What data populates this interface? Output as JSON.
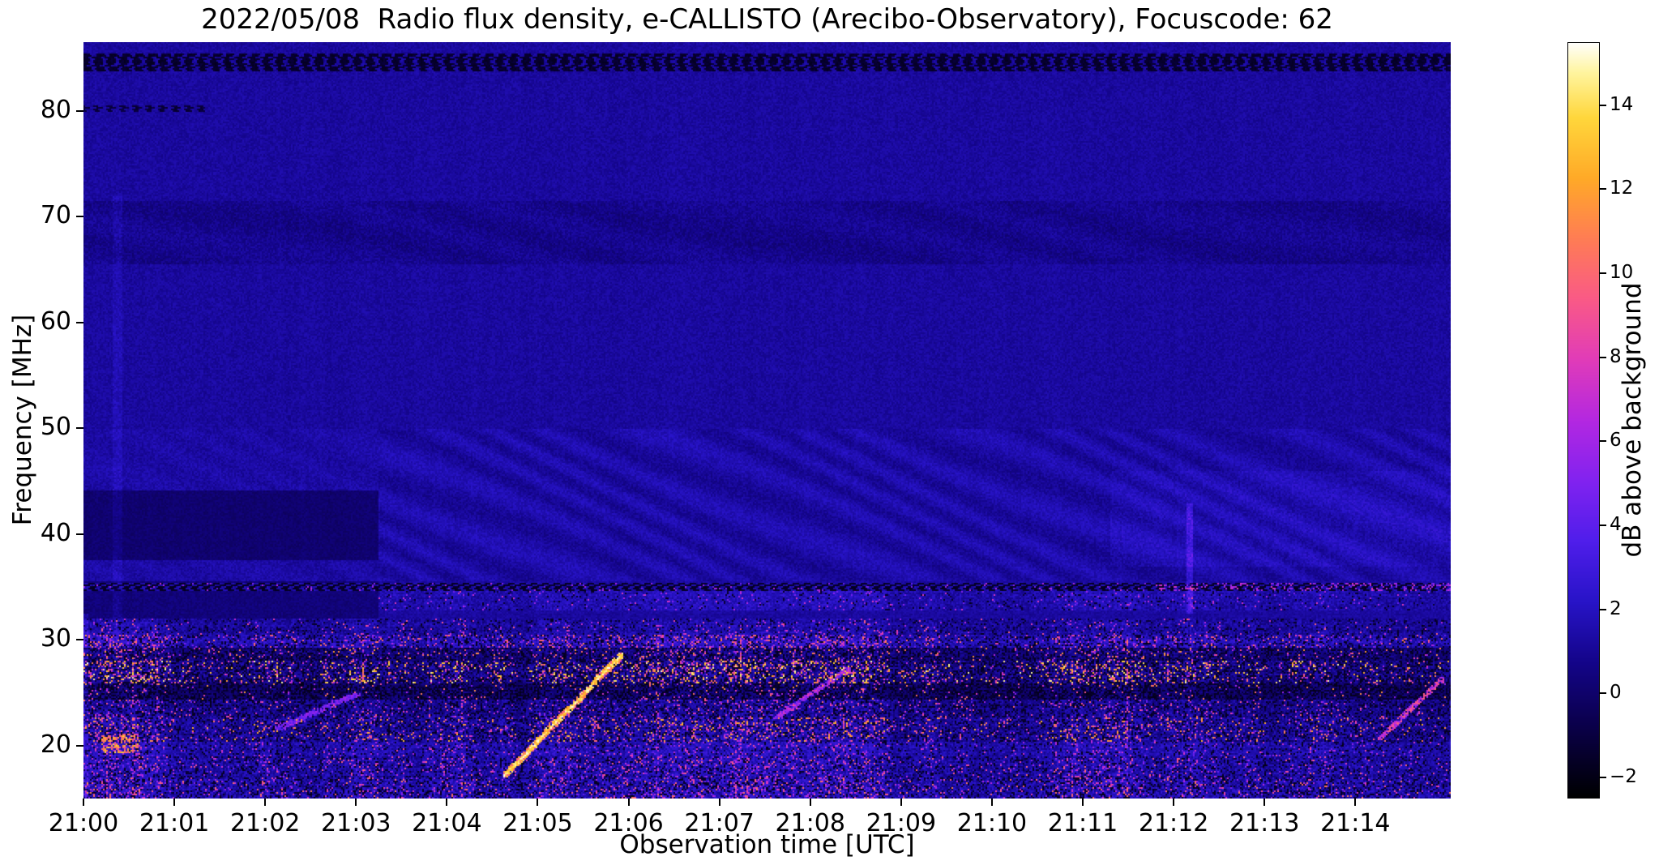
{
  "figure": {
    "background": "#ffffff"
  },
  "chart_data": {
    "type": "heatmap",
    "title": "2022/05/08  Radio flux density, e-CALLISTO (Arecibo-Observatory), Focuscode: 62",
    "xlabel": "Observation time [UTC]",
    "ylabel": "Frequency [MHz]",
    "colorbar_label": "dB above background",
    "x_tick_labels": [
      "21:00",
      "21:01",
      "21:02",
      "21:03",
      "21:04",
      "21:05",
      "21:06",
      "21:07",
      "21:08",
      "21:09",
      "21:10",
      "21:11",
      "21:12",
      "21:13",
      "21:14"
    ],
    "x_tick_minutes": [
      0,
      1,
      2,
      3,
      4,
      5,
      6,
      7,
      8,
      9,
      10,
      11,
      12,
      13,
      14
    ],
    "x_range_minutes": [
      0,
      15.05
    ],
    "y_tick_labels": [
      "20",
      "30",
      "40",
      "50",
      "60",
      "70",
      "80"
    ],
    "y_ticks_mhz": [
      20,
      30,
      40,
      50,
      60,
      70,
      80
    ],
    "y_range_mhz": [
      15.0,
      86.5
    ],
    "colorbar_tick_labels": [
      "−2",
      "0",
      "2",
      "4",
      "6",
      "8",
      "10",
      "12",
      "14"
    ],
    "colorbar_ticks_db": [
      -2,
      0,
      2,
      4,
      6,
      8,
      10,
      12,
      14
    ],
    "value_range_db": [
      -2.5,
      15.5
    ],
    "grid": false,
    "legend": "none",
    "colormap": "black-blue-violet-magenta-orange-yellow-white (gnuplot2-like)",
    "colormap_stops": [
      [
        0.0,
        "#000000"
      ],
      [
        0.09,
        "#0a0046"
      ],
      [
        0.18,
        "#14058a"
      ],
      [
        0.26,
        "#2814c8"
      ],
      [
        0.34,
        "#501eeb"
      ],
      [
        0.42,
        "#8223f0"
      ],
      [
        0.5,
        "#b428e1"
      ],
      [
        0.58,
        "#e13cb9"
      ],
      [
        0.66,
        "#fa5a87"
      ],
      [
        0.74,
        "#ff7d55"
      ],
      [
        0.82,
        "#ffaa28"
      ],
      [
        0.9,
        "#ffd73c"
      ],
      [
        0.96,
        "#fff5a0"
      ],
      [
        1.0,
        "#ffffff"
      ]
    ],
    "background_level_db": 1.2,
    "features": [
      {
        "kind": "band",
        "name": "upper-quiet-background",
        "f": [
          50,
          86.5
        ],
        "level": 1.2,
        "noise": 0.45
      },
      {
        "kind": "band",
        "name": "wavy-mid-background",
        "f": [
          35.6,
          50
        ],
        "level": 1.35,
        "noise": 0.5,
        "wavy": 0.42
      },
      {
        "kind": "band",
        "name": "mottled-band-66-71",
        "f": [
          65.5,
          71.5
        ],
        "level": 1.0,
        "noise": 0.55,
        "mottle": 0.4
      },
      {
        "kind": "band",
        "name": "dark-patch-38-44-before-2103",
        "f": [
          37.5,
          44.2
        ],
        "t": [
          0,
          3.25
        ],
        "level": 0.1,
        "noise": 0.35
      },
      {
        "kind": "band",
        "name": "dark-patch-32-36-before-2103",
        "f": [
          31.8,
          35.6
        ],
        "t": [
          0,
          3.25
        ],
        "level": 0.35,
        "noise": 0.4
      },
      {
        "kind": "band",
        "name": "late-blue-enhancement-38-46",
        "f": [
          37,
          46
        ],
        "t": [
          11.3,
          15.05
        ],
        "boost": 0.55
      },
      {
        "kind": "dashes",
        "name": "rfi-blanked-line-85mhz",
        "f": [
          83.8,
          85.4
        ],
        "dark": -1.8,
        "duty": 0.55
      },
      {
        "kind": "dashes",
        "name": "rfi-dotted-line-80mhz",
        "f": [
          79.9,
          80.45
        ],
        "t": [
          0,
          1.35
        ],
        "dark": -1.5,
        "duty": 0.35
      },
      {
        "kind": "dashline",
        "name": "rfi-line-35mhz",
        "f": [
          34.65,
          35.35
        ],
        "dark": -1.9,
        "base": 1.5,
        "duty": 0.55,
        "late_after": 11.8,
        "bright_prob_late": 0.18
      },
      {
        "kind": "speckle",
        "name": "noise-row-30.5-32",
        "f": [
          30.5,
          32
        ],
        "level": 1.3,
        "noise": 0.9,
        "dark_prob": 0.1,
        "bright_prob": 0.03,
        "bright": [
          5,
          10
        ],
        "use_activity": true
      },
      {
        "kind": "speckle",
        "name": "noise-row-29.3-30.5",
        "f": [
          29.3,
          30.5
        ],
        "level": 2.0,
        "noise": 1.0,
        "dark_prob": 0.18,
        "bright_prob": 0.13,
        "bright": [
          4,
          11
        ],
        "use_activity": true
      },
      {
        "kind": "speckle",
        "name": "noise-row-28-29.3",
        "f": [
          28.0,
          29.3
        ],
        "level": 0.6,
        "noise": 0.8,
        "dark_prob": 0.3,
        "bright_prob": 0.08,
        "bright": [
          5,
          12
        ],
        "use_activity": true
      },
      {
        "kind": "speckle",
        "name": "noise-row-26-28",
        "f": [
          25.9,
          28.0
        ],
        "level": 1.0,
        "noise": 1.0,
        "dark_prob": 0.28,
        "bright_prob": 0.16,
        "bright": [
          6,
          15
        ],
        "use_activity": true
      },
      {
        "kind": "speckle",
        "name": "noise-row-24-26",
        "f": [
          24.3,
          25.9
        ],
        "level": 0.3,
        "noise": 0.6,
        "dark_prob": 0.42,
        "bright_prob": 0.05,
        "bright": [
          5,
          12
        ],
        "use_activity": true
      },
      {
        "kind": "speckle",
        "name": "noise-row-23-24",
        "f": [
          22.6,
          24.3
        ],
        "level": 1.1,
        "noise": 0.9,
        "dark_prob": 0.22,
        "bright_prob": 0.07,
        "bright": [
          4,
          10
        ],
        "use_activity": true
      },
      {
        "kind": "speckle",
        "name": "noise-row-20-23",
        "f": [
          20.4,
          22.6
        ],
        "level": 1.3,
        "noise": 1.0,
        "dark_prob": 0.2,
        "bright_prob": 0.11,
        "bright": [
          5,
          13
        ],
        "use_activity": true
      },
      {
        "kind": "speckle",
        "name": "noise-row-19-20",
        "f": [
          19.0,
          20.4
        ],
        "level": 1.8,
        "noise": 0.9,
        "dark_prob": 0.12,
        "bright_prob": 0.06,
        "bright": [
          4,
          9
        ],
        "use_activity": true
      },
      {
        "kind": "speckle",
        "name": "noise-row-17-19",
        "f": [
          17.0,
          19.0
        ],
        "level": 1.5,
        "noise": 1.0,
        "dark_prob": 0.15,
        "bright_prob": 0.09,
        "bright": [
          4,
          10
        ],
        "use_activity": true
      },
      {
        "kind": "speckle",
        "name": "noise-row-15-17",
        "f": [
          15.0,
          17.0
        ],
        "level": 1.7,
        "noise": 1.1,
        "dark_prob": 0.2,
        "bright_prob": 0.1,
        "bright": [
          4,
          11
        ],
        "use_activity": true
      },
      {
        "kind": "speckle",
        "name": "band-33-35-after-2103",
        "f": [
          32.8,
          34.65
        ],
        "t": [
          3.25,
          15.05
        ],
        "level": 1.7,
        "noise": 0.8,
        "dark_prob": 0.05,
        "bright_prob": 0.025,
        "bright": [
          4,
          8
        ],
        "use_activity": true
      },
      {
        "kind": "blob",
        "name": "burst-2100.4-20mhz",
        "t": [
          0.2,
          0.6
        ],
        "f": [
          19.3,
          21.2
        ],
        "bright_prob": 0.5,
        "bright": [
          8,
          14
        ]
      },
      {
        "kind": "diagonal",
        "name": "drifting-burst-2105",
        "t": [
          4.62,
          5.95
        ],
        "f": [
          17.0,
          28.8
        ],
        "width": 0.45,
        "bright": [
          9,
          15
        ],
        "core": [
          12,
          15.5
        ]
      },
      {
        "kind": "diagonal",
        "name": "drifting-burst-2102",
        "t": [
          2.1,
          3.05
        ],
        "f": [
          21.5,
          25.0
        ],
        "width": 0.3,
        "bright": [
          3.5,
          6
        ]
      },
      {
        "kind": "diagonal",
        "name": "drifting-burst-2108",
        "t": [
          7.6,
          8.45
        ],
        "f": [
          22.5,
          27.5
        ],
        "width": 0.3,
        "bright": [
          4,
          8
        ]
      },
      {
        "kind": "diagonal",
        "name": "drifting-burst-2114",
        "t": [
          14.25,
          14.98
        ],
        "f": [
          20.5,
          26.5
        ],
        "width": 0.35,
        "bright": [
          5,
          10
        ]
      },
      {
        "kind": "vline",
        "name": "edge-column-2100",
        "tc": 0.02,
        "width": 0.03,
        "f": [
          15,
          32.5
        ],
        "boost": 1.8
      },
      {
        "kind": "vline",
        "name": "faint-column-2100.4",
        "tc": 0.38,
        "width": 0.05,
        "f": [
          28,
          72
        ],
        "boost": 0.7
      },
      {
        "kind": "vline",
        "name": "bright-column-2112.2",
        "tc": 12.18,
        "width": 0.04,
        "f": [
          32.5,
          43
        ],
        "boost": 2.2
      }
    ]
  }
}
